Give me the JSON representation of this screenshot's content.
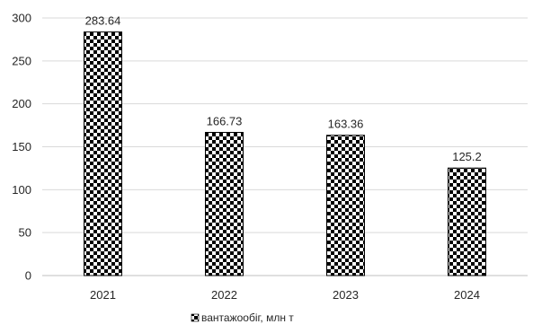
{
  "chart_data": {
    "type": "bar",
    "categories": [
      "2021",
      "2022",
      "2023",
      "2024"
    ],
    "series": [
      {
        "name": "вантажообіг, млн т",
        "values": [
          283.64,
          166.73,
          163.36,
          125.2
        ]
      }
    ],
    "data_labels": [
      "283.64",
      "166.73",
      "163.36",
      "125.2"
    ],
    "yticks": [
      "0",
      "50",
      "100",
      "150",
      "200",
      "250",
      "300"
    ],
    "ylim": [
      0,
      300
    ],
    "title": "",
    "xlabel": "",
    "ylabel": "",
    "grid": true,
    "legend_position": "bottom",
    "bar_fill": "checkerboard",
    "colors": {
      "bar_dark": "#000000",
      "bar_light": "#ffffff",
      "grid": "#d9d9d9",
      "text": "#262626"
    }
  }
}
